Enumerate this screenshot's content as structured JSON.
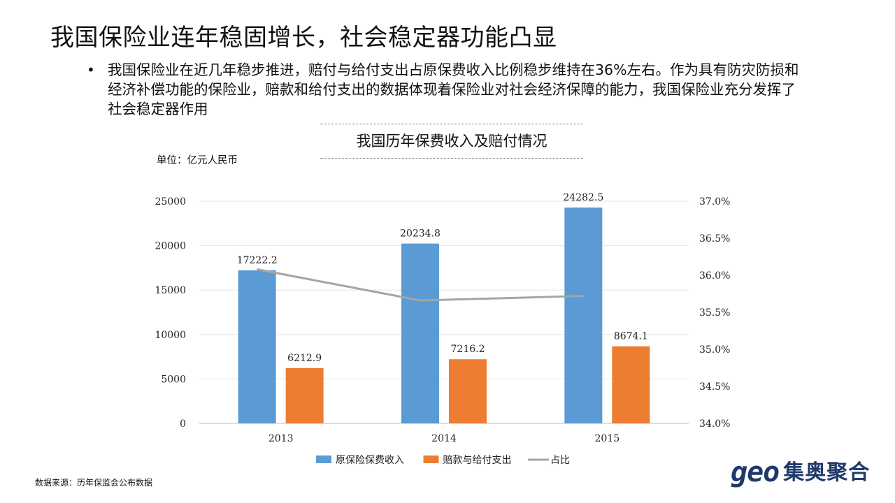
{
  "page": {
    "title": "我国保险业连年稳固增长，社会稳定器功能凸显",
    "bullet_marker": "•",
    "bullet": "我国保险业在近几年稳步推进，赔付与给付支出占原保费收入比例稳步维持在36%左右。作为具有防灾防损和经济补偿功能的保险业，赔款和给付支出的数据体现着保险业对社会经济保障的能力，我国保险业充分发挥了社会稳定器作用",
    "unit": "单位：亿元人民币",
    "source": "数据来源：历年保监会公布数据",
    "logo_en": "geo",
    "logo_cn": "集奥聚合"
  },
  "chart_data": {
    "type": "bar",
    "title": "我国历年保费收入及赔付情况",
    "categories": [
      "2013",
      "2014",
      "2015"
    ],
    "series": [
      {
        "name": "原保险保费收入",
        "type": "bar",
        "axis": "left",
        "color": "#5b9bd5",
        "values": [
          17222.2,
          20234.8,
          24282.5
        ],
        "labels": [
          "17222.2",
          "20234.8",
          "24282.5"
        ]
      },
      {
        "name": "赔款与给付支出",
        "type": "bar",
        "axis": "left",
        "color": "#ed7d31",
        "values": [
          6212.9,
          7216.2,
          8674.1
        ],
        "labels": [
          "6212.9",
          "7216.2",
          "8674.1"
        ]
      },
      {
        "name": "占比",
        "type": "line",
        "axis": "right",
        "color": "#a5a5a5",
        "values": [
          36.08,
          35.66,
          35.72
        ]
      }
    ],
    "y_left": {
      "min": 0,
      "max": 25000,
      "ticks": [
        "0",
        "5000",
        "10000",
        "15000",
        "20000",
        "25000"
      ]
    },
    "y_right": {
      "min": 34.0,
      "max": 37.0,
      "ticks": [
        "34.0%",
        "34.5%",
        "35.0%",
        "35.5%",
        "36.0%",
        "36.5%",
        "37.0%"
      ]
    },
    "grid": true,
    "legend_position": "bottom"
  }
}
